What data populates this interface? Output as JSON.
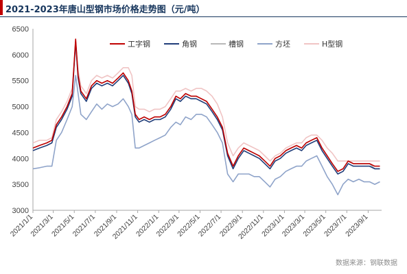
{
  "title": "2021-2023年唐山型钢市场价格走势图（元/吨）",
  "source": "数据来源：钢联数据",
  "chart_data": {
    "type": "line",
    "title": "2021-2023年唐山型钢市场价格走势图（元/吨）",
    "xlabel": "",
    "ylabel": "",
    "ylim": [
      3000,
      6500
    ],
    "yticks": [
      3000,
      3500,
      4000,
      4500,
      5000,
      5500,
      6000,
      6500
    ],
    "xlim": [
      "2021-01-01",
      "2023-10-10"
    ],
    "xticks": [
      "2021/1/1",
      "2021/3/1",
      "2021/5/1",
      "2021/7/1",
      "2021/9/1",
      "2021/11/1",
      "2022/1/1",
      "2022/3/1",
      "2022/5/1",
      "2022/7/1",
      "2022/9/1",
      "2022/11/1",
      "2023/1/1",
      "2023/3/1",
      "2023/5/1",
      "2023/7/1",
      "2023/9/1"
    ],
    "grid": false,
    "legend_position": "top",
    "series": [
      {
        "name": "工字钢",
        "color": "#c00000",
        "x": [
          "2021-01-01",
          "2021-01-20",
          "2021-02-10",
          "2021-02-25",
          "2021-03-10",
          "2021-03-25",
          "2021-04-10",
          "2021-04-25",
          "2021-05-05",
          "2021-05-12",
          "2021-05-20",
          "2021-06-05",
          "2021-06-20",
          "2021-07-05",
          "2021-07-20",
          "2021-08-05",
          "2021-08-20",
          "2021-09-05",
          "2021-09-20",
          "2021-10-05",
          "2021-10-15",
          "2021-10-25",
          "2021-11-05",
          "2021-11-20",
          "2021-12-05",
          "2021-12-20",
          "2022-01-05",
          "2022-01-20",
          "2022-02-05",
          "2022-02-20",
          "2022-03-05",
          "2022-03-20",
          "2022-04-05",
          "2022-04-20",
          "2022-05-05",
          "2022-05-20",
          "2022-06-05",
          "2022-06-20",
          "2022-07-05",
          "2022-07-20",
          "2022-08-05",
          "2022-08-20",
          "2022-09-05",
          "2022-09-20",
          "2022-10-05",
          "2022-10-20",
          "2022-11-05",
          "2022-11-20",
          "2022-12-05",
          "2022-12-20",
          "2023-01-05",
          "2023-01-20",
          "2023-02-05",
          "2023-02-20",
          "2023-03-05",
          "2023-03-20",
          "2023-04-05",
          "2023-04-20",
          "2023-05-05",
          "2023-05-20",
          "2023-06-05",
          "2023-06-20",
          "2023-07-05",
          "2023-07-20",
          "2023-08-05",
          "2023-08-20",
          "2023-09-05",
          "2023-09-20",
          "2023-10-05"
        ],
        "values": [
          4200,
          4250,
          4300,
          4350,
          4650,
          4800,
          5000,
          5250,
          6300,
          5600,
          5300,
          5150,
          5400,
          5500,
          5450,
          5500,
          5450,
          5550,
          5650,
          5500,
          5300,
          4850,
          4750,
          4800,
          4750,
          4800,
          4800,
          4850,
          5000,
          5200,
          5150,
          5250,
          5200,
          5200,
          5150,
          5100,
          4950,
          4800,
          4600,
          4100,
          3850,
          4050,
          4200,
          4150,
          4100,
          4050,
          3950,
          3850,
          4000,
          4050,
          4150,
          4200,
          4250,
          4200,
          4300,
          4350,
          4400,
          4200,
          4050,
          3900,
          3750,
          3800,
          3950,
          3900,
          3900,
          3900,
          3900,
          3850,
          3850
        ]
      },
      {
        "name": "角钢",
        "color": "#1f3c78",
        "x": [
          "2021-01-01",
          "2021-01-20",
          "2021-02-10",
          "2021-02-25",
          "2021-03-10",
          "2021-03-25",
          "2021-04-10",
          "2021-04-25",
          "2021-05-05",
          "2021-05-12",
          "2021-05-20",
          "2021-06-05",
          "2021-06-20",
          "2021-07-05",
          "2021-07-20",
          "2021-08-05",
          "2021-08-20",
          "2021-09-05",
          "2021-09-20",
          "2021-10-05",
          "2021-10-15",
          "2021-10-25",
          "2021-11-05",
          "2021-11-20",
          "2021-12-05",
          "2021-12-20",
          "2022-01-05",
          "2022-01-20",
          "2022-02-05",
          "2022-02-20",
          "2022-03-05",
          "2022-03-20",
          "2022-04-05",
          "2022-04-20",
          "2022-05-05",
          "2022-05-20",
          "2022-06-05",
          "2022-06-20",
          "2022-07-05",
          "2022-07-20",
          "2022-08-05",
          "2022-08-20",
          "2022-09-05",
          "2022-09-20",
          "2022-10-05",
          "2022-10-20",
          "2022-11-05",
          "2022-11-20",
          "2022-12-05",
          "2022-12-20",
          "2023-01-05",
          "2023-01-20",
          "2023-02-05",
          "2023-02-20",
          "2023-03-05",
          "2023-03-20",
          "2023-04-05",
          "2023-04-20",
          "2023-05-05",
          "2023-05-20",
          "2023-06-05",
          "2023-06-20",
          "2023-07-05",
          "2023-07-20",
          "2023-08-05",
          "2023-08-20",
          "2023-09-05",
          "2023-09-20",
          "2023-10-05"
        ],
        "values": [
          4150,
          4200,
          4250,
          4300,
          4600,
          4750,
          4950,
          5200,
          6250,
          5550,
          5250,
          5100,
          5350,
          5450,
          5400,
          5450,
          5400,
          5500,
          5600,
          5450,
          5250,
          4800,
          4700,
          4750,
          4700,
          4750,
          4750,
          4800,
          4950,
          5150,
          5100,
          5200,
          5150,
          5150,
          5100,
          5050,
          4900,
          4750,
          4550,
          4050,
          3800,
          4000,
          4150,
          4100,
          4050,
          4000,
          3900,
          3800,
          3950,
          4000,
          4100,
          4150,
          4200,
          4150,
          4250,
          4300,
          4350,
          4150,
          4000,
          3850,
          3700,
          3750,
          3900,
          3850,
          3850,
          3850,
          3850,
          3800,
          3800
        ]
      },
      {
        "name": "槽钢",
        "color": "#b7b7b7",
        "x": [
          "2021-01-01",
          "2021-01-20",
          "2021-02-10",
          "2021-02-25",
          "2021-03-10",
          "2021-03-25",
          "2021-04-10",
          "2021-04-25",
          "2021-05-05",
          "2021-05-12",
          "2021-05-20",
          "2021-06-05",
          "2021-06-20",
          "2021-07-05",
          "2021-07-20",
          "2021-08-05",
          "2021-08-20",
          "2021-09-05",
          "2021-09-20",
          "2021-10-05",
          "2021-10-15",
          "2021-10-25",
          "2021-11-05",
          "2021-11-20",
          "2021-12-05",
          "2021-12-20",
          "2022-01-05",
          "2022-01-20",
          "2022-02-05",
          "2022-02-20",
          "2022-03-05",
          "2022-03-20",
          "2022-04-05",
          "2022-04-20",
          "2022-05-05",
          "2022-05-20",
          "2022-06-05",
          "2022-06-20",
          "2022-07-05",
          "2022-07-20",
          "2022-08-05",
          "2022-08-20",
          "2022-09-05",
          "2022-09-20",
          "2022-10-05",
          "2022-10-20",
          "2022-11-05",
          "2022-11-20",
          "2022-12-05",
          "2022-12-20",
          "2023-01-05",
          "2023-01-20",
          "2023-02-05",
          "2023-02-20",
          "2023-03-05",
          "2023-03-20",
          "2023-04-05",
          "2023-04-20",
          "2023-05-05",
          "2023-05-20",
          "2023-06-05",
          "2023-06-20",
          "2023-07-05",
          "2023-07-20",
          "2023-08-05",
          "2023-08-20",
          "2023-09-05",
          "2023-09-20",
          "2023-10-05"
        ],
        "values": [
          4200,
          4250,
          4300,
          4350,
          4650,
          4800,
          5000,
          5250,
          6250,
          5650,
          5300,
          5150,
          5400,
          5500,
          5450,
          5500,
          5450,
          5550,
          5650,
          5500,
          5300,
          4850,
          4750,
          4800,
          4750,
          4800,
          4800,
          4850,
          5000,
          5200,
          5150,
          5250,
          5200,
          5200,
          5150,
          5100,
          4950,
          4800,
          4600,
          4100,
          3850,
          4050,
          4200,
          4150,
          4100,
          4050,
          3950,
          3850,
          4000,
          4050,
          4150,
          4200,
          4250,
          4200,
          4300,
          4350,
          4400,
          4200,
          4050,
          3900,
          3750,
          3800,
          3950,
          3900,
          3900,
          3900,
          3900,
          3800,
          3800
        ]
      },
      {
        "name": "方坯",
        "color": "#8ea3c9",
        "x": [
          "2021-01-01",
          "2021-01-20",
          "2021-02-10",
          "2021-02-25",
          "2021-03-10",
          "2021-03-25",
          "2021-04-10",
          "2021-04-25",
          "2021-05-05",
          "2021-05-12",
          "2021-05-20",
          "2021-06-05",
          "2021-06-20",
          "2021-07-05",
          "2021-07-20",
          "2021-08-05",
          "2021-08-20",
          "2021-09-05",
          "2021-09-20",
          "2021-10-05",
          "2021-10-15",
          "2021-10-25",
          "2021-11-05",
          "2021-11-20",
          "2021-12-05",
          "2021-12-20",
          "2022-01-05",
          "2022-01-20",
          "2022-02-05",
          "2022-02-20",
          "2022-03-05",
          "2022-03-20",
          "2022-04-05",
          "2022-04-20",
          "2022-05-05",
          "2022-05-20",
          "2022-06-05",
          "2022-06-20",
          "2022-07-05",
          "2022-07-20",
          "2022-08-05",
          "2022-08-20",
          "2022-09-05",
          "2022-09-20",
          "2022-10-05",
          "2022-10-20",
          "2022-11-05",
          "2022-11-20",
          "2022-12-05",
          "2022-12-20",
          "2023-01-05",
          "2023-01-20",
          "2023-02-05",
          "2023-02-20",
          "2023-03-05",
          "2023-03-20",
          "2023-04-05",
          "2023-04-20",
          "2023-05-05",
          "2023-05-20",
          "2023-06-05",
          "2023-06-20",
          "2023-07-05",
          "2023-07-20",
          "2023-08-05",
          "2023-08-20",
          "2023-09-05",
          "2023-09-20",
          "2023-10-05"
        ],
        "values": [
          3800,
          3820,
          3850,
          3850,
          4350,
          4500,
          4750,
          5000,
          5600,
          5250,
          4850,
          4750,
          4900,
          5050,
          4950,
          5050,
          5000,
          5050,
          5150,
          5000,
          4850,
          4200,
          4200,
          4250,
          4300,
          4350,
          4400,
          4450,
          4600,
          4700,
          4650,
          4800,
          4750,
          4850,
          4850,
          4800,
          4650,
          4500,
          4300,
          3700,
          3550,
          3700,
          3700,
          3700,
          3650,
          3650,
          3550,
          3450,
          3600,
          3650,
          3750,
          3800,
          3850,
          3850,
          3950,
          4000,
          4050,
          3850,
          3650,
          3500,
          3300,
          3500,
          3600,
          3550,
          3600,
          3550,
          3550,
          3500,
          3550
        ]
      },
      {
        "name": "H型钢",
        "color": "#f0c4c4",
        "x": [
          "2021-01-01",
          "2021-01-20",
          "2021-02-10",
          "2021-02-25",
          "2021-03-10",
          "2021-03-25",
          "2021-04-10",
          "2021-04-25",
          "2021-05-05",
          "2021-05-12",
          "2021-05-20",
          "2021-06-05",
          "2021-06-20",
          "2021-07-05",
          "2021-07-20",
          "2021-08-05",
          "2021-08-20",
          "2021-09-05",
          "2021-09-20",
          "2021-10-05",
          "2021-10-15",
          "2021-10-25",
          "2021-11-05",
          "2021-11-20",
          "2021-12-05",
          "2021-12-20",
          "2022-01-05",
          "2022-01-20",
          "2022-02-05",
          "2022-02-20",
          "2022-03-05",
          "2022-03-20",
          "2022-04-05",
          "2022-04-20",
          "2022-05-05",
          "2022-05-20",
          "2022-06-05",
          "2022-06-20",
          "2022-07-05",
          "2022-07-20",
          "2022-08-05",
          "2022-08-20",
          "2022-09-05",
          "2022-09-20",
          "2022-10-05",
          "2022-10-20",
          "2022-11-05",
          "2022-11-20",
          "2022-12-05",
          "2022-12-20",
          "2023-01-05",
          "2023-01-20",
          "2023-02-05",
          "2023-02-20",
          "2023-03-05",
          "2023-03-20",
          "2023-04-05",
          "2023-04-20",
          "2023-05-05",
          "2023-05-20",
          "2023-06-05",
          "2023-06-20",
          "2023-07-05",
          "2023-07-20",
          "2023-08-05",
          "2023-08-20",
          "2023-09-05",
          "2023-09-20",
          "2023-10-05"
        ],
        "values": [
          4300,
          4350,
          4350,
          4400,
          4750,
          4900,
          5100,
          5350,
          6150,
          5700,
          5400,
          5250,
          5500,
          5600,
          5550,
          5600,
          5550,
          5650,
          5750,
          5750,
          5600,
          5000,
          4950,
          4950,
          4900,
          4950,
          4950,
          5000,
          5150,
          5300,
          5300,
          5350,
          5300,
          5350,
          5350,
          5300,
          5200,
          5050,
          4800,
          4300,
          4050,
          4200,
          4300,
          4250,
          4200,
          4150,
          4050,
          3950,
          4050,
          4100,
          4200,
          4250,
          4300,
          4300,
          4400,
          4450,
          4450,
          4350,
          4200,
          4100,
          3950,
          3950,
          3950,
          3950,
          3950,
          3950,
          3950,
          3950,
          3950
        ]
      }
    ]
  }
}
